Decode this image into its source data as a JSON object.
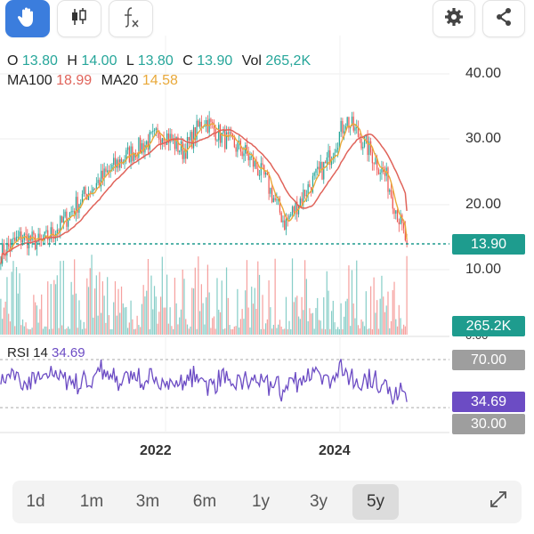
{
  "toolbar": {
    "icons": [
      "hand-icon",
      "candlestick-icon",
      "function-icon",
      "gear-icon",
      "share-icon"
    ],
    "accent": "#3b7ddd"
  },
  "ohlc": {
    "open_key": "O",
    "open": "13.80",
    "high_key": "H",
    "high": "14.00",
    "low_key": "L",
    "low": "13.80",
    "close_key": "C",
    "close": "13.90",
    "vol_key": "Vol",
    "vol": "265,2K"
  },
  "ma": {
    "ma100_key": "MA100",
    "ma100": "18.99",
    "ma20_key": "MA20",
    "ma20": "14.58"
  },
  "price_axis": [
    "40.00",
    "30.00",
    "20.00",
    "10.00"
  ],
  "volume_axis_zero": "0.00",
  "tags": {
    "last_price": "13.90",
    "last_volume": "265.2K",
    "rsi_upper": "70.00",
    "rsi_value": "34.69",
    "rsi_lower": "30.00"
  },
  "rsi": {
    "key": "RSI 14",
    "value": "34.69"
  },
  "years": [
    "2022",
    "2024"
  ],
  "ranges": [
    {
      "label": "1d",
      "active": false
    },
    {
      "label": "1m",
      "active": false
    },
    {
      "label": "3m",
      "active": false
    },
    {
      "label": "6m",
      "active": false
    },
    {
      "label": "1y",
      "active": false
    },
    {
      "label": "3y",
      "active": false
    },
    {
      "label": "5y",
      "active": true
    }
  ],
  "colors": {
    "up": "#26a69a",
    "down": "#ef5350",
    "ma100": "#e0635a",
    "ma20": "#e9a93a",
    "rsi": "#6c4cc4"
  },
  "chart_data": {
    "type": "candlestick",
    "x": [
      0,
      0.05,
      0.1,
      0.15,
      0.2,
      0.25,
      0.3,
      0.35,
      0.4,
      0.45,
      0.5,
      0.55,
      0.6,
      0.65,
      0.7,
      0.75,
      0.8,
      0.85,
      0.9,
      0.95,
      1.0
    ],
    "close": [
      12.5,
      15,
      14,
      17,
      21,
      24,
      27,
      29,
      31,
      28,
      33,
      30,
      28,
      24,
      17,
      22,
      26,
      33,
      29,
      24,
      13.9
    ],
    "ma100_last": 18.99,
    "ma20_last": 14.58,
    "rsi_last": 34.69,
    "ylim": [
      10,
      40
    ],
    "rsi_levels": [
      30,
      70
    ]
  }
}
